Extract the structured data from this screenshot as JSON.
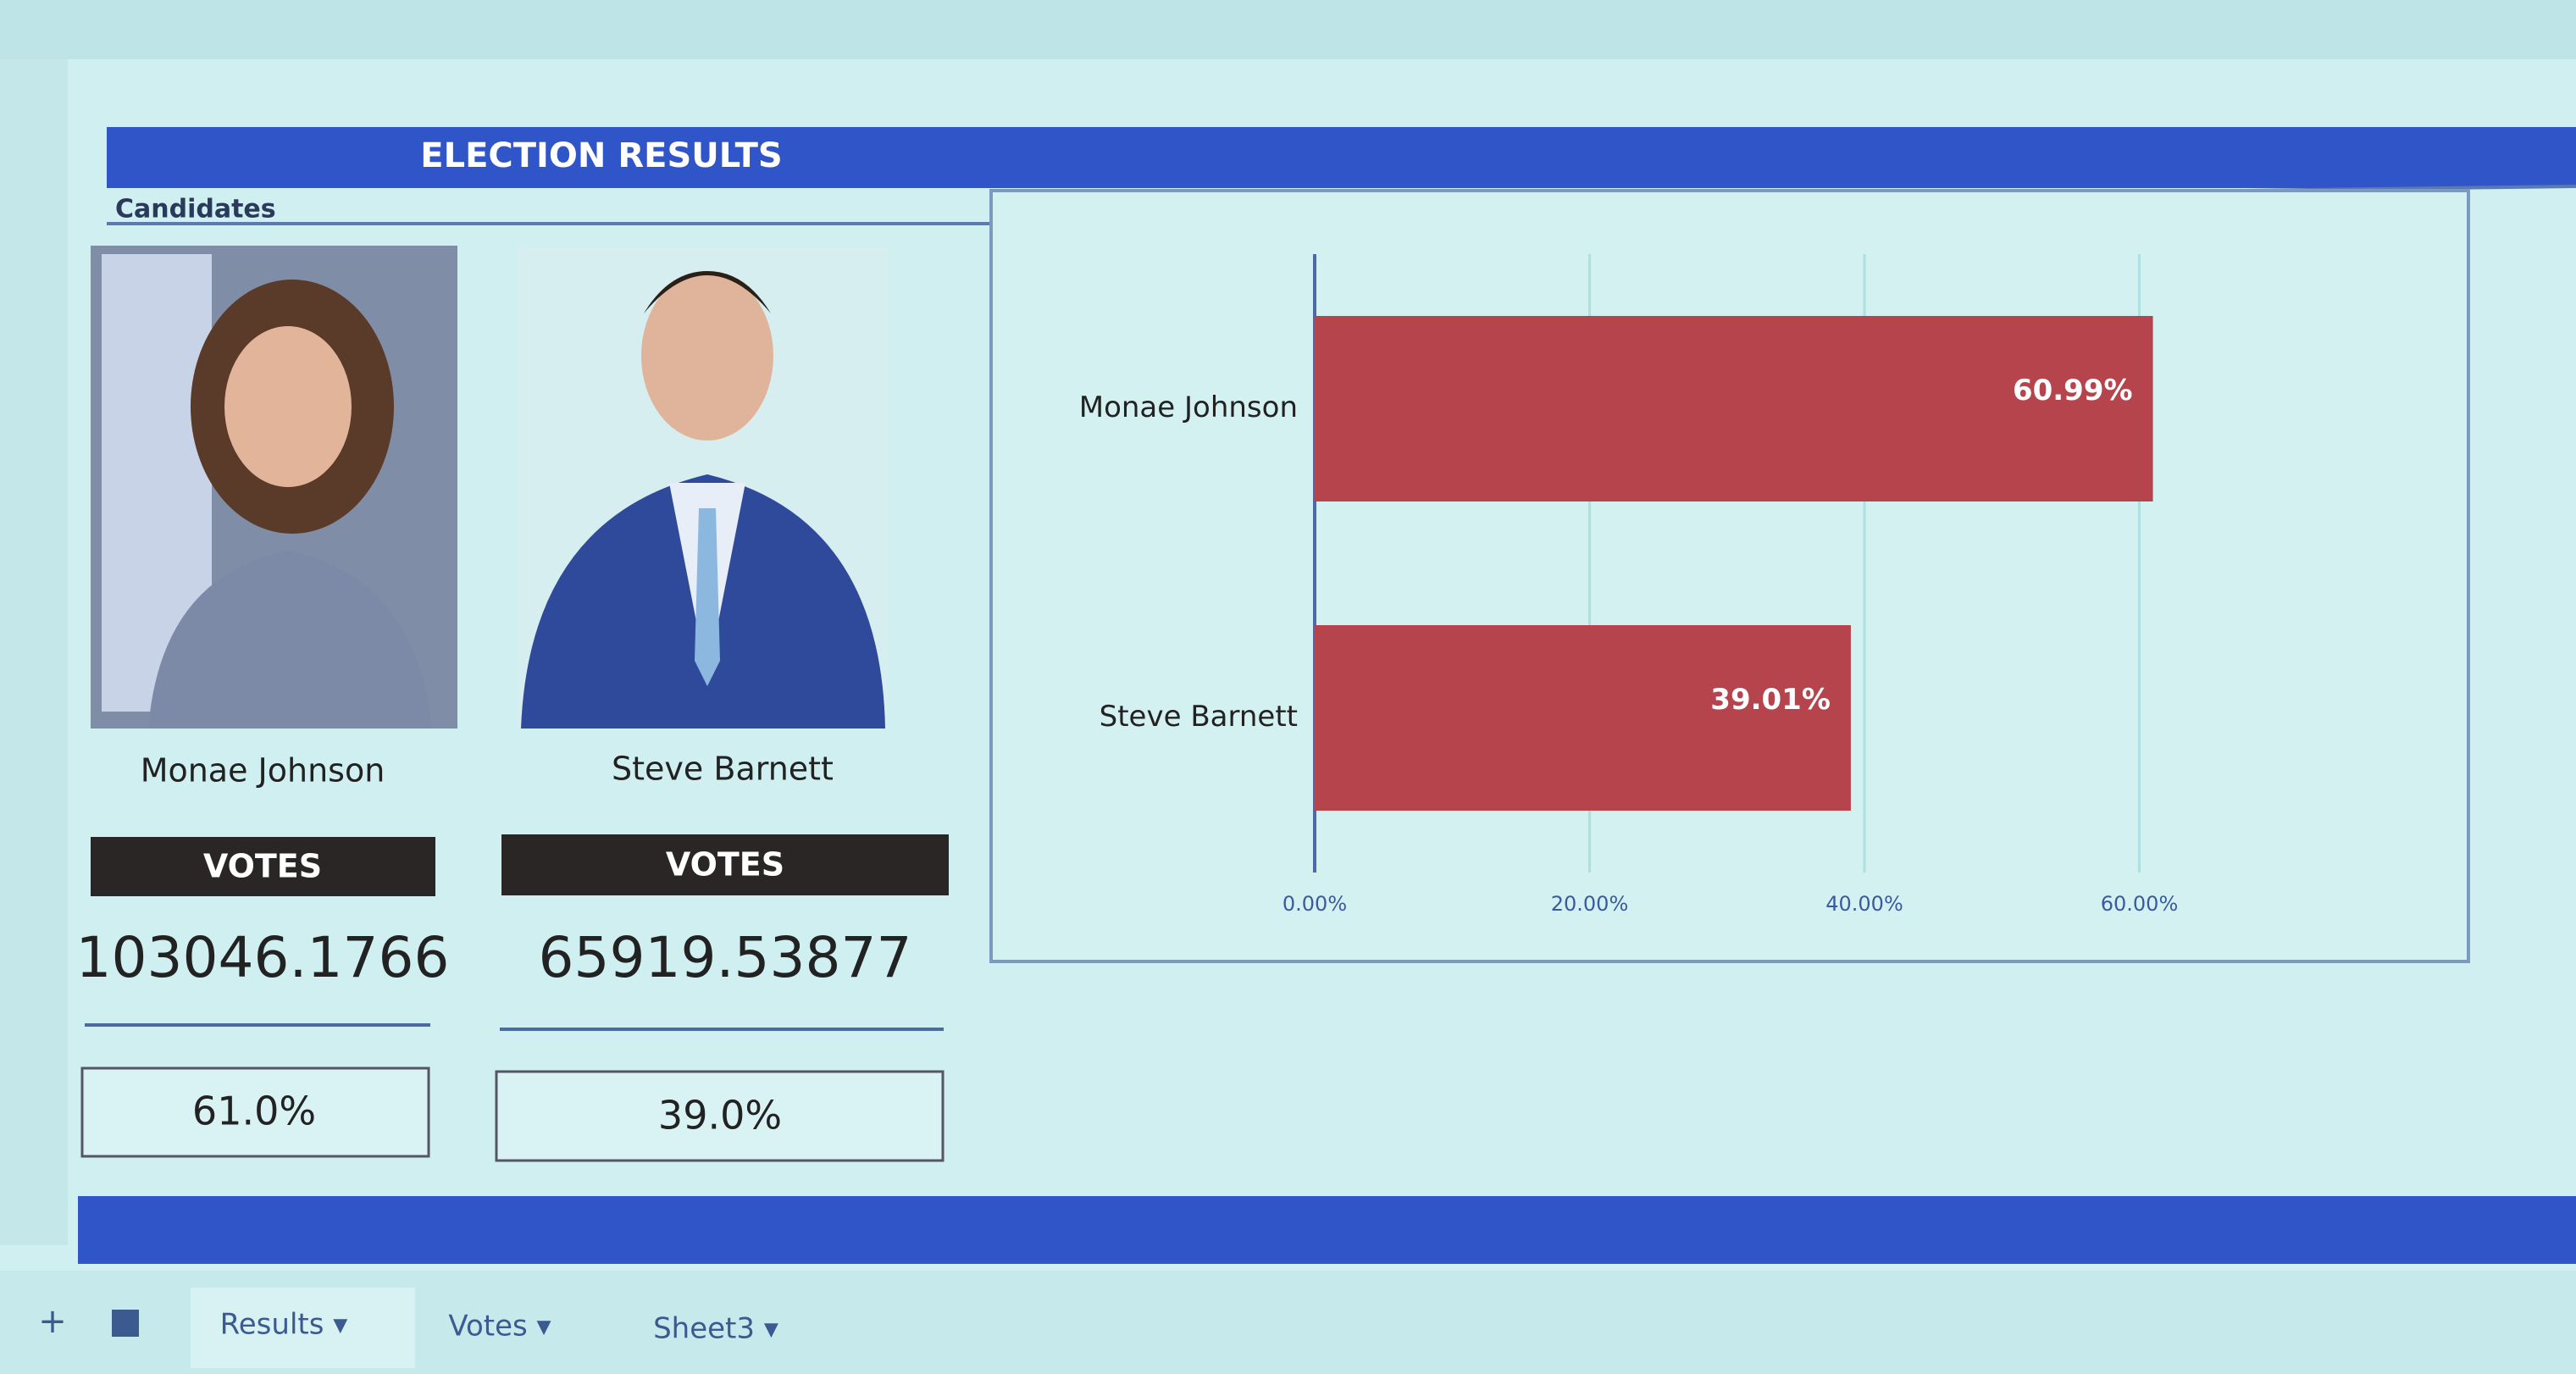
{
  "header": {
    "title": "ELECTION RESULTS",
    "section": "Candidates"
  },
  "candidates": [
    {
      "name": "Monae Johnson",
      "votes_label": "VOTES",
      "votes": 103046.1766,
      "percent": "61.0%"
    },
    {
      "name": "Steve Barnett",
      "votes_label": "VOTES",
      "votes": 65919.53877,
      "percent": "39.0%"
    }
  ],
  "chart_data": {
    "type": "bar",
    "orientation": "horizontal",
    "categories": [
      "Monae Johnson",
      "Steve Barnett"
    ],
    "values": [
      60.99,
      39.01
    ],
    "value_labels": [
      "60.99%",
      "39.01%"
    ],
    "color": "#b5444c",
    "xlim": [
      0,
      80
    ],
    "xticks": [
      {
        "value": 0,
        "label": "0.00%"
      },
      {
        "value": 20,
        "label": "20.00%"
      },
      {
        "value": 40,
        "label": "40.00%"
      },
      {
        "value": 60,
        "label": "60.00%"
      }
    ],
    "grid": true
  },
  "sheet_tabs": [
    "Results ▾",
    "Votes ▾",
    "Sheet3 ▾"
  ]
}
